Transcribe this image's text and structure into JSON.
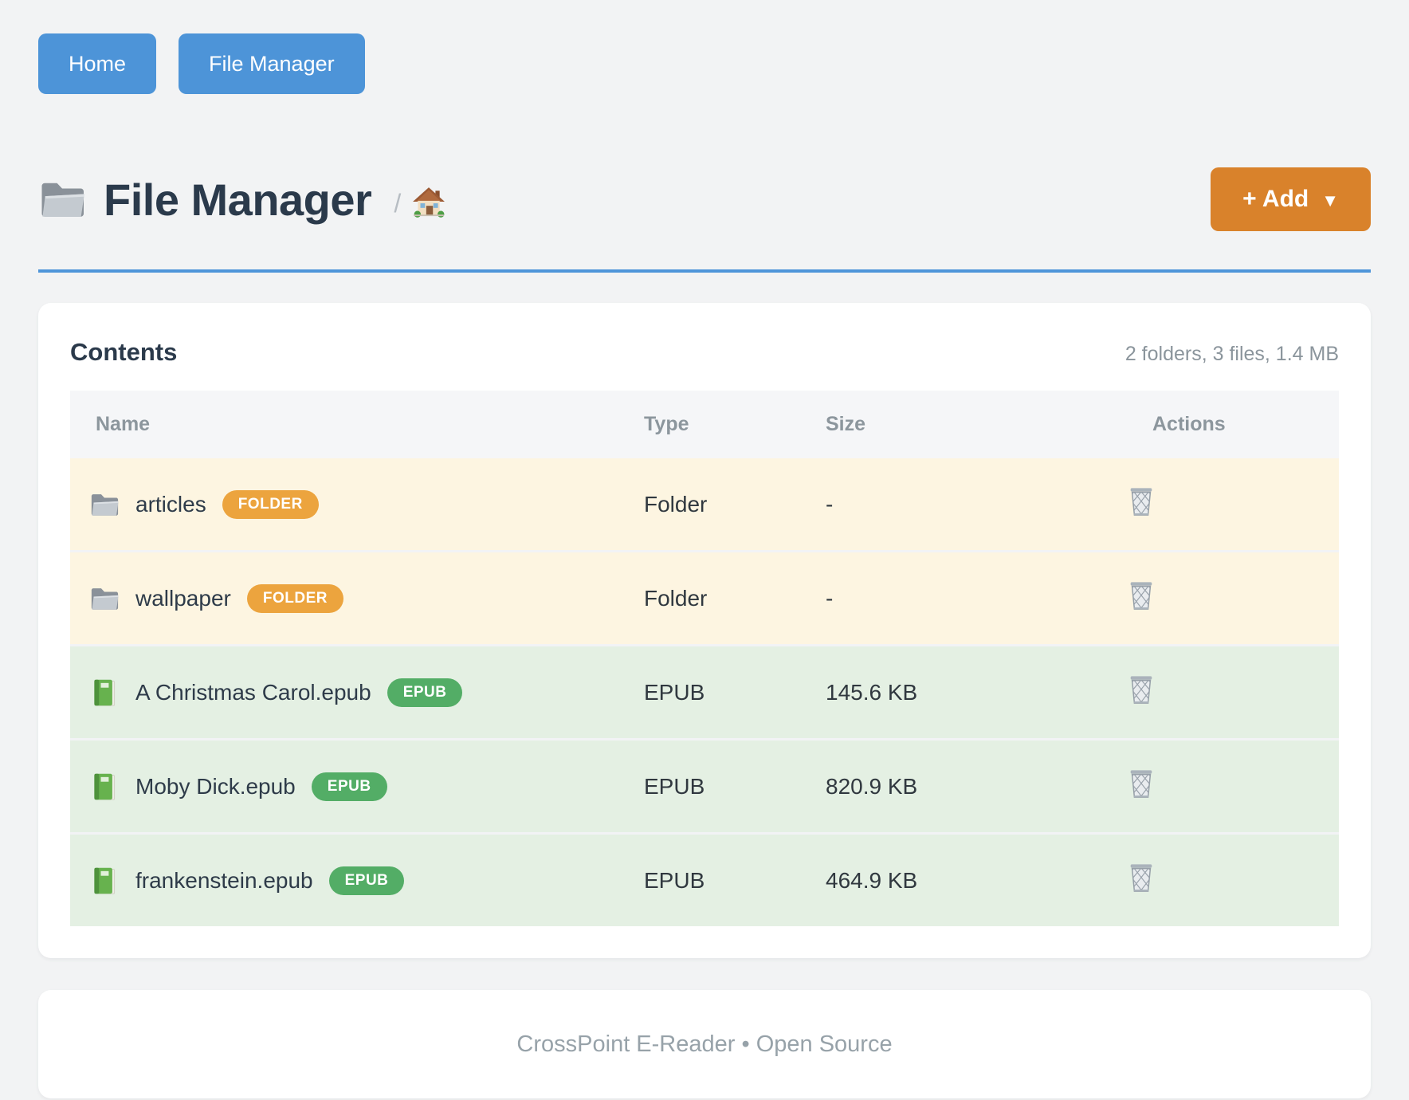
{
  "nav": {
    "home_label": "Home",
    "file_manager_label": "File Manager"
  },
  "header": {
    "title": "File Manager",
    "title_icon": "folder-icon",
    "breadcrumb_separator": "/",
    "breadcrumb_home_icon": "home-icon",
    "add_button_label": "+ Add",
    "add_button_caret": "▼"
  },
  "colors": {
    "nav_button_blue": "#4D94D8",
    "header_rule_blue": "#4E95D9",
    "add_button_orange": "#D9822B",
    "folder_badge": "#ECA43E",
    "epub_badge": "#53AD66",
    "folder_row_bg": "#FDF5E1",
    "file_row_bg": "#E4F0E3"
  },
  "contents": {
    "heading": "Contents",
    "summary": "2 folders, 3 files, 1.4 MB",
    "columns": [
      "Name",
      "Type",
      "Size",
      "Actions"
    ],
    "rows": [
      {
        "name": "articles",
        "icon": "folder-icon",
        "badge": "FOLDER",
        "badge_style": "folder",
        "type": "Folder",
        "size": "-",
        "action_icon": "trash-icon"
      },
      {
        "name": "wallpaper",
        "icon": "folder-icon",
        "badge": "FOLDER",
        "badge_style": "folder",
        "type": "Folder",
        "size": "-",
        "action_icon": "trash-icon"
      },
      {
        "name": "A Christmas Carol.epub",
        "icon": "book-icon",
        "badge": "EPUB",
        "badge_style": "epub",
        "type": "EPUB",
        "size": "145.6 KB",
        "action_icon": "trash-icon"
      },
      {
        "name": "Moby Dick.epub",
        "icon": "book-icon",
        "badge": "EPUB",
        "badge_style": "epub",
        "type": "EPUB",
        "size": "820.9 KB",
        "action_icon": "trash-icon"
      },
      {
        "name": "frankenstein.epub",
        "icon": "book-icon",
        "badge": "EPUB",
        "badge_style": "epub",
        "type": "EPUB",
        "size": "464.9 KB",
        "action_icon": "trash-icon"
      }
    ]
  },
  "footer": {
    "text": "CrossPoint E-Reader • Open Source"
  }
}
